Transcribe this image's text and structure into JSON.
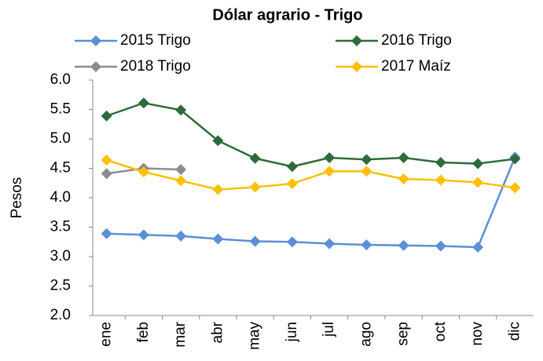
{
  "chart_data": {
    "type": "line",
    "title": "Dólar agrario  - Trigo",
    "ylabel": "Pesos",
    "categories": [
      "ene",
      "feb",
      "mar",
      "abr",
      "may",
      "jun",
      "jul",
      "ago",
      "sep",
      "oct",
      "nov",
      "dic"
    ],
    "ylim": [
      2.0,
      6.0
    ],
    "yticks": [
      {
        "value": 2.0,
        "label": "2.0"
      },
      {
        "value": 2.5,
        "label": "2.5"
      },
      {
        "value": 3.0,
        "label": "3.0"
      },
      {
        "value": 3.5,
        "label": "3.5"
      },
      {
        "value": 4.0,
        "label": "4.0"
      },
      {
        "value": 4.5,
        "label": "4.5"
      },
      {
        "value": 5.0,
        "label": "5.0"
      },
      {
        "value": 5.5,
        "label": "5.5"
      },
      {
        "value": 6.0,
        "label": "6.0"
      }
    ],
    "grid": false,
    "series": [
      {
        "name": "2015 Trigo",
        "color": "#5b8fd6",
        "values": [
          3.39,
          3.37,
          3.35,
          3.3,
          3.26,
          3.25,
          3.22,
          3.2,
          3.19,
          3.18,
          3.16,
          4.69
        ]
      },
      {
        "name": "2016 Trigo",
        "color": "#2e6b3a",
        "values": [
          5.39,
          5.61,
          5.49,
          4.97,
          4.67,
          4.53,
          4.68,
          4.65,
          4.68,
          4.6,
          4.58,
          4.66
        ]
      },
      {
        "name": "2018 Trigo",
        "color": "#8c8c8c",
        "values": [
          4.41,
          4.5,
          4.48,
          null,
          null,
          null,
          null,
          null,
          null,
          null,
          null,
          null
        ]
      },
      {
        "name": "2017 Maíz",
        "color": "#ffc000",
        "values": [
          4.64,
          4.44,
          4.29,
          4.14,
          4.18,
          4.24,
          4.45,
          4.45,
          4.32,
          4.3,
          4.26,
          4.17
        ]
      }
    ]
  }
}
